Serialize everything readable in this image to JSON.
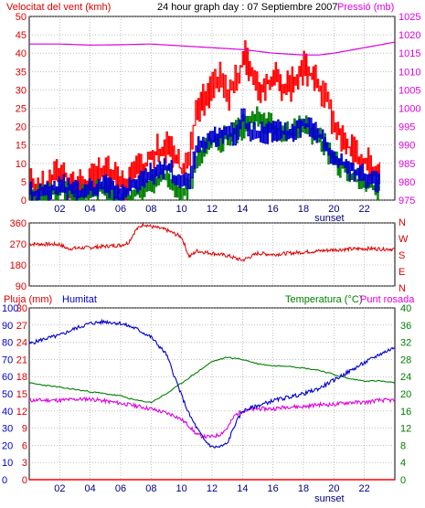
{
  "header": {
    "left_title": "Velocitat del vent (kmh)",
    "center_title": "24 hour graph day : 07 Septiembre 2007",
    "right_title": "Pressió (mb)"
  },
  "colors": {
    "frame": "#000000",
    "grid": "#9a9a9a",
    "wind_gust": "#ff0000",
    "wind_avg": "#0000cc",
    "wind_low": "#008000",
    "pressure": "#dd00dd",
    "direction": "#dd0000",
    "humidity": "#0000cc",
    "temperature": "#008000",
    "dewpoint": "#dd00dd",
    "rain": "#ff0000",
    "left_label": "#dd0000",
    "right_label": "#dd00dd",
    "hum_label": "#0000cc",
    "temp_label": "#008000"
  },
  "x_axis": {
    "hours": [
      "02",
      "04",
      "06",
      "08",
      "10",
      "12",
      "14",
      "16",
      "18",
      "20",
      "22"
    ],
    "sunset_label": "sunset"
  },
  "direction_labels": [
    "N",
    "W",
    "S",
    "E",
    "N"
  ],
  "bottom_header": {
    "rain_label": "Pluja (mm)",
    "humidity_label": "Humitat",
    "temp_label": "Temperatura (°C)",
    "dew_label": "Punt rosada"
  },
  "chart_data": [
    {
      "type": "line",
      "panel": "wind-pressure",
      "x": "hour of day (0-24)",
      "yaxis_left": {
        "label": "Velocitat del vent (kmh)",
        "ylim": [
          0,
          50
        ],
        "ticks": [
          0,
          5,
          10,
          15,
          20,
          25,
          30,
          35,
          40,
          45,
          50
        ]
      },
      "yaxis_right": {
        "label": "Pressió (mb)",
        "ylim": [
          975,
          1025
        ],
        "ticks": [
          975,
          980,
          985,
          990,
          995,
          1000,
          1005,
          1010,
          1015,
          1020,
          1025
        ]
      },
      "series": [
        {
          "axis": "left",
          "style": "step",
          "x": [
            0,
            1,
            2,
            3,
            4,
            5,
            6,
            7,
            8,
            9,
            10,
            10.5,
            11,
            12,
            12.5,
            13,
            13.5,
            14,
            14.3,
            14.6,
            15,
            16,
            17,
            18,
            19,
            19.5,
            20,
            21,
            22,
            23
          ],
          "values": [
            4,
            3,
            8,
            4,
            5,
            8,
            4,
            7,
            12,
            15,
            8,
            12,
            25,
            30,
            35,
            28,
            32,
            38,
            39,
            33,
            30,
            33,
            30,
            36,
            31,
            28,
            20,
            14,
            10,
            8
          ]
        },
        {
          "axis": "left",
          "style": "step",
          "x": [
            0,
            1,
            2,
            3,
            4,
            5,
            6,
            7,
            8,
            9,
            10,
            10.5,
            11,
            12,
            13,
            13.5,
            14,
            14.5,
            15,
            16,
            17,
            18,
            19,
            20,
            21,
            22,
            23
          ],
          "values": [
            2,
            2,
            4,
            2,
            3,
            4,
            2,
            4,
            7,
            9,
            4,
            6,
            14,
            17,
            19,
            18,
            22,
            19,
            18,
            19,
            18,
            21,
            18,
            12,
            9,
            6,
            5
          ]
        },
        {
          "axis": "left",
          "style": "step",
          "x": [
            0,
            1,
            2,
            3,
            4,
            5,
            6,
            7,
            8,
            9,
            10,
            10.5,
            11,
            12,
            13,
            14,
            15,
            16,
            17,
            18,
            19,
            20,
            21,
            22,
            23
          ],
          "values": [
            0,
            1,
            3,
            0,
            2,
            3,
            0,
            2,
            5,
            7,
            2,
            4,
            12,
            16,
            17,
            20,
            22,
            20,
            18,
            20,
            17,
            11,
            7,
            4,
            3
          ]
        },
        {
          "axis": "right",
          "style": "line",
          "x": [
            0,
            2,
            4,
            6,
            8,
            10,
            12,
            14,
            16,
            18,
            19,
            20,
            22,
            24
          ],
          "values": [
            1017.5,
            1017.5,
            1017.2,
            1017.3,
            1017.5,
            1017,
            1016.5,
            1016,
            1015,
            1014.5,
            1014.5,
            1015,
            1016.5,
            1018
          ]
        }
      ]
    },
    {
      "type": "line",
      "panel": "wind-direction",
      "yaxis_left": {
        "ylim": [
          90,
          360
        ],
        "ticks": [
          90,
          180,
          270,
          360
        ]
      },
      "series": [
        {
          "x": [
            0,
            2,
            2.5,
            4,
            6,
            6.5,
            7,
            7.5,
            8,
            9,
            9.5,
            10,
            10.5,
            11,
            12,
            13,
            14,
            15,
            16,
            18,
            20,
            22,
            24
          ],
          "values": [
            270,
            268,
            250,
            255,
            265,
            275,
            330,
            355,
            345,
            330,
            315,
            300,
            215,
            240,
            230,
            220,
            200,
            230,
            225,
            235,
            245,
            250,
            248
          ]
        }
      ]
    },
    {
      "type": "line",
      "panel": "humidity-temperature",
      "yaxis_left_rain": {
        "label": "Pluja (mm)",
        "ylim": [
          0,
          30
        ],
        "ticks": [
          0,
          3,
          6,
          9,
          12,
          15,
          18,
          21,
          24,
          27,
          30
        ]
      },
      "yaxis_left_humidity": {
        "label": "Humitat",
        "ylim": [
          0,
          100
        ],
        "ticks": [
          0,
          10,
          20,
          30,
          40,
          50,
          60,
          70,
          80,
          90,
          100
        ]
      },
      "yaxis_right": {
        "label": "Temperatura (°C)",
        "ylim": [
          0,
          40
        ],
        "ticks": [
          0,
          4,
          8,
          12,
          16,
          20,
          24,
          28,
          32,
          36,
          40
        ]
      },
      "series": [
        {
          "axis": "humidity",
          "x": [
            0,
            1,
            2,
            3,
            4,
            5,
            6,
            7,
            8,
            9,
            9.5,
            10,
            10.5,
            11,
            11.5,
            12,
            12.5,
            13,
            13.5,
            14,
            15,
            16,
            17,
            18,
            19,
            20,
            21,
            22,
            23,
            24
          ],
          "values": [
            79,
            82,
            84,
            88,
            91,
            92,
            91,
            88,
            83,
            73,
            61,
            49,
            38,
            30,
            23,
            19,
            19,
            21,
            32,
            40,
            43,
            46,
            48,
            50,
            53,
            58,
            63,
            68,
            73,
            77
          ]
        },
        {
          "axis": "temp",
          "x": [
            0,
            1,
            2,
            3,
            4,
            5,
            6,
            7,
            8,
            9,
            10,
            11,
            12,
            13,
            14,
            15,
            16,
            17,
            18,
            19,
            20,
            21,
            22,
            23,
            24
          ],
          "values": [
            22.5,
            22,
            21.5,
            21,
            20.5,
            20,
            19.5,
            18.5,
            18,
            20,
            22.5,
            25,
            27.5,
            28.5,
            28,
            27,
            26.5,
            26.5,
            26,
            25.5,
            24.5,
            23.5,
            23,
            23,
            22.5
          ]
        },
        {
          "axis": "temp",
          "x": [
            0,
            1,
            2,
            3,
            4,
            5,
            6,
            7,
            8,
            9,
            9.5,
            10,
            10.5,
            11,
            11.5,
            12,
            12.5,
            13,
            13.5,
            14,
            15,
            16,
            17,
            18,
            19,
            20,
            21,
            22,
            23,
            24
          ],
          "values": [
            18.5,
            18.5,
            18.5,
            18.7,
            18.8,
            18.3,
            17.8,
            17.2,
            16.5,
            15.5,
            15,
            14,
            12.5,
            10.5,
            10,
            10,
            10.5,
            12,
            15,
            16,
            16.5,
            16.5,
            17,
            17,
            17.5,
            17.5,
            18,
            18,
            18.5,
            18.5
          ]
        },
        {
          "axis": "rain",
          "x": [
            0,
            24
          ],
          "values": [
            0,
            0
          ]
        }
      ]
    }
  ]
}
